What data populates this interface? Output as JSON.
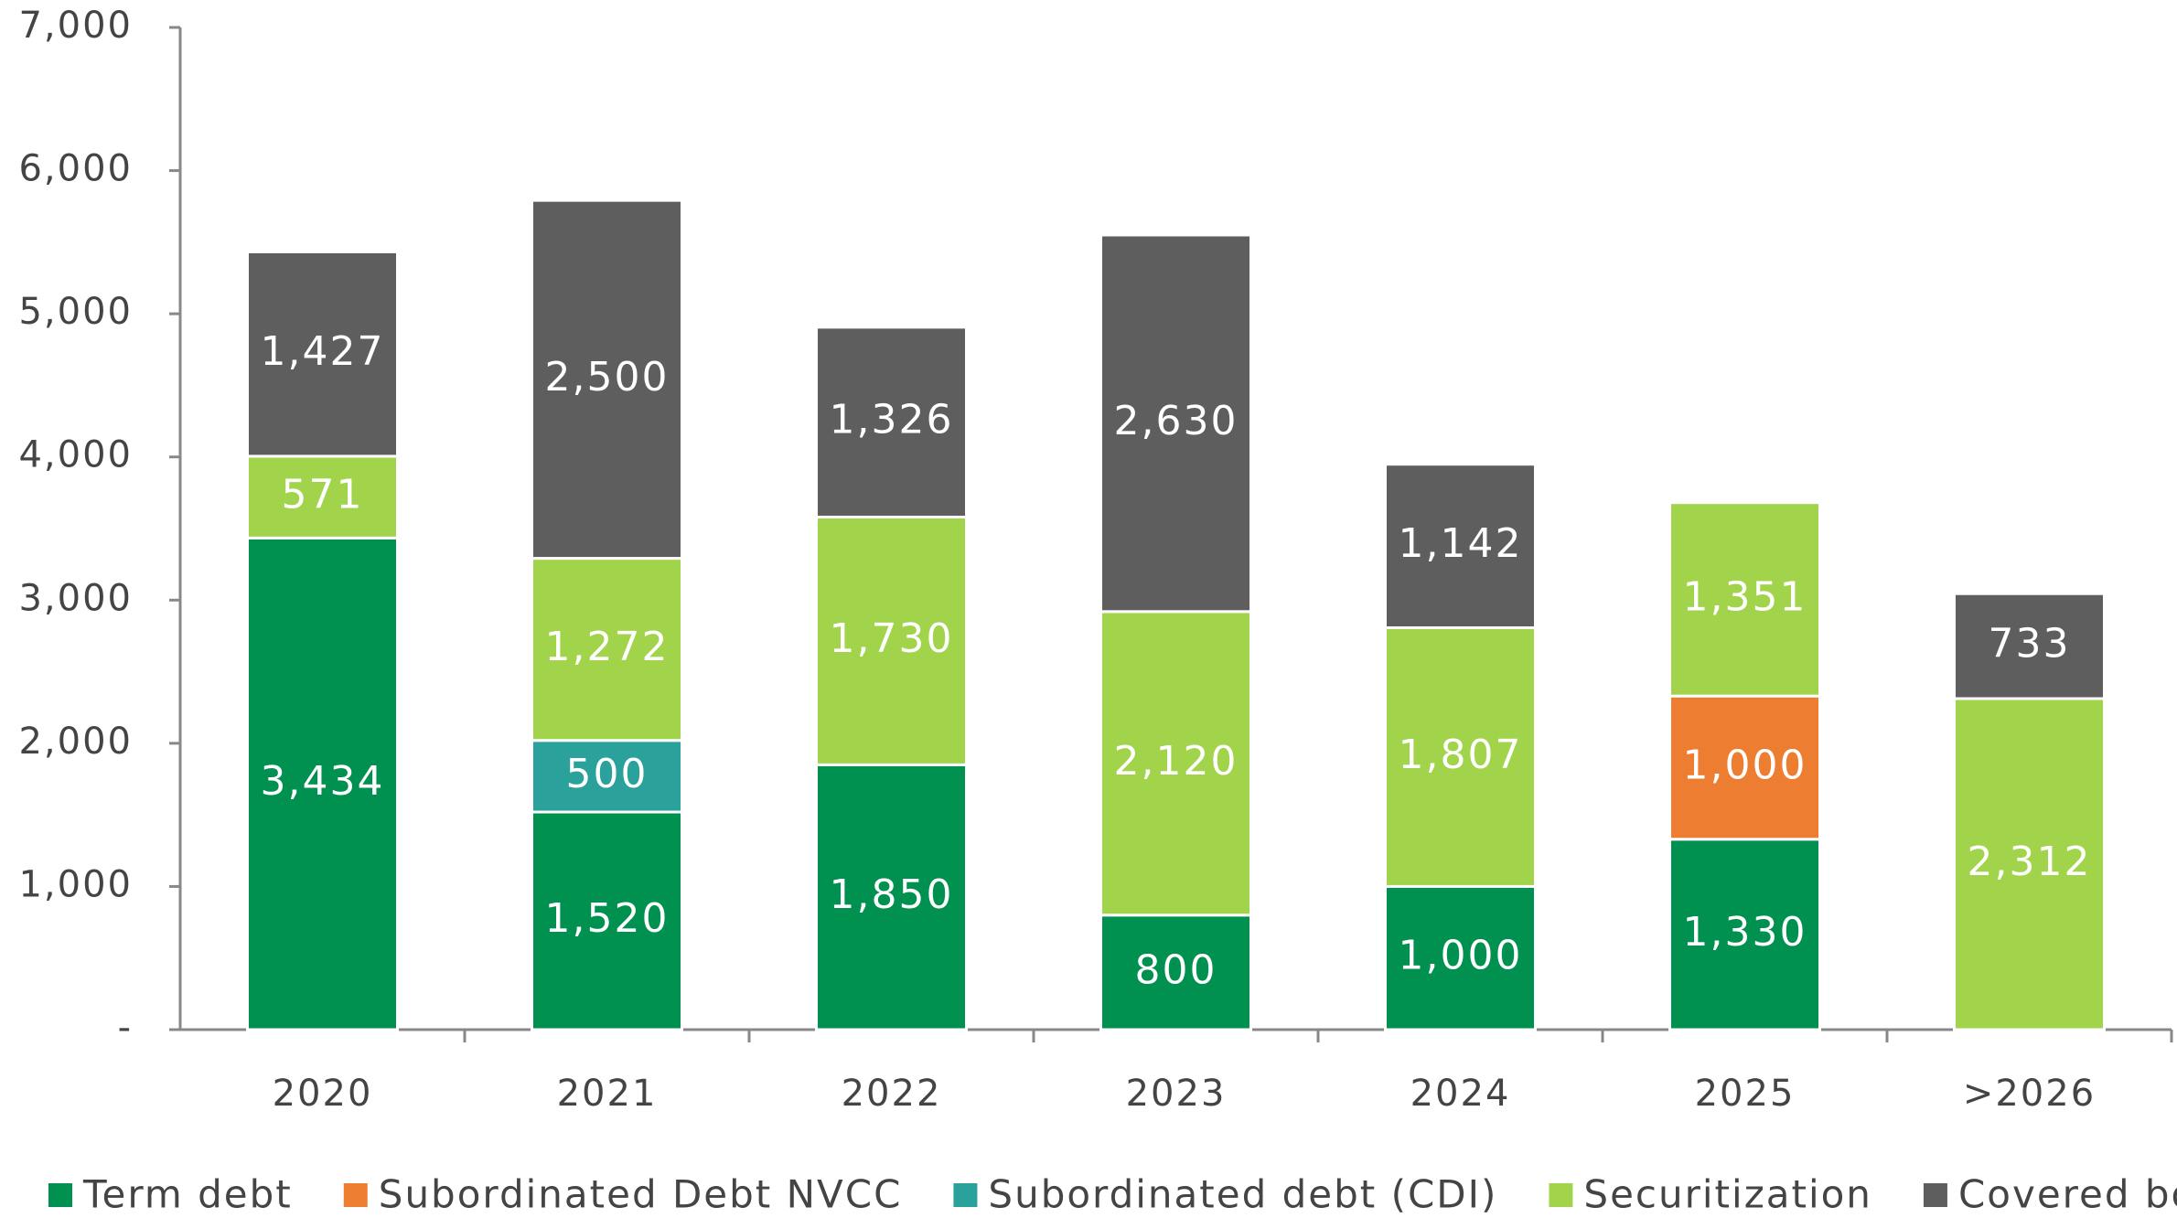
{
  "chart_data": {
    "type": "stacked_bar",
    "categories": [
      "2020",
      "2021",
      "2022",
      "2023",
      "2024",
      "2025",
      ">2026"
    ],
    "series": [
      {
        "name": "Term debt",
        "color": "#00904f",
        "values": [
          3434,
          1520,
          1850,
          800,
          1000,
          1330,
          null
        ],
        "value_labels": [
          "3,434",
          "1,520",
          "1,850",
          "800",
          "1,000",
          "1,330",
          null
        ]
      },
      {
        "name": "Subordinated Debt NVCC",
        "color": "#ed7d31",
        "values": [
          null,
          null,
          null,
          null,
          null,
          1000,
          null
        ],
        "value_labels": [
          null,
          null,
          null,
          null,
          null,
          "1,000",
          null
        ]
      },
      {
        "name": "Subordinated debt (CDI)",
        "color": "#2aa19a",
        "values": [
          null,
          500,
          null,
          null,
          null,
          null,
          null
        ],
        "value_labels": [
          null,
          "500",
          null,
          null,
          null,
          null,
          null
        ]
      },
      {
        "name": "Securitization",
        "color": "#a2d44b",
        "values": [
          571,
          1272,
          1730,
          2120,
          1807,
          1351,
          2312
        ],
        "value_labels": [
          "571",
          "1,272",
          "1,730",
          "2,120",
          "1,807",
          "1,351",
          "2,312"
        ]
      },
      {
        "name": "Covered bonds",
        "color": "#5e5e5e",
        "values": [
          1427,
          2500,
          1326,
          2630,
          1142,
          null,
          733
        ],
        "value_labels": [
          "1,427",
          "2,500",
          "1,326",
          "2,630",
          "1,142",
          null,
          "733"
        ]
      }
    ],
    "ylim": [
      0,
      7000
    ],
    "yticks": [
      {
        "value": 0,
        "label": "-"
      },
      {
        "value": 1000,
        "label": "1,000"
      },
      {
        "value": 2000,
        "label": "2,000"
      },
      {
        "value": 3000,
        "label": "3,000"
      },
      {
        "value": 4000,
        "label": "4,000"
      },
      {
        "value": 5000,
        "label": "5,000"
      },
      {
        "value": 6000,
        "label": "6,000"
      },
      {
        "value": 7000,
        "label": "7,000"
      }
    ],
    "legend": "bottom"
  }
}
